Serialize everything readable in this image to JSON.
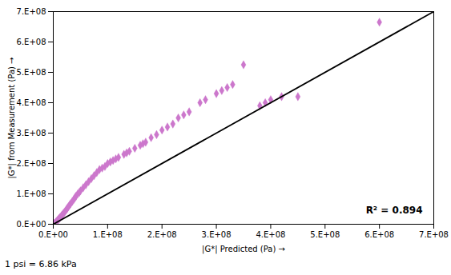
{
  "chart_data": {
    "type": "scatter",
    "xlabel": "|G*| Predicted (Pa)",
    "ylabel": "|G*| from Measurement (Pa)",
    "series": [
      {
        "type": "scatter",
        "color": "#CC77CC",
        "marker": "diamond",
        "x": [
          2000000.0,
          4000000.0,
          5000000.0,
          6000000.0,
          7000000.0,
          8000000.0,
          9000000.0,
          10000000.0,
          11000000.0,
          12000000.0,
          13000000.0,
          15000000.0,
          16000000.0,
          18000000.0,
          20000000.0,
          22000000.0,
          24000000.0,
          26000000.0,
          28000000.0,
          30000000.0,
          32000000.0,
          35000000.0,
          38000000.0,
          40000000.0,
          42000000.0,
          45000000.0,
          48000000.0,
          50000000.0,
          55000000.0,
          60000000.0,
          65000000.0,
          70000000.0,
          75000000.0,
          80000000.0,
          85000000.0,
          90000000.0,
          95000000.0,
          100000000.0,
          105000000.0,
          110000000.0,
          115000000.0,
          120000000.0,
          130000000.0,
          135000000.0,
          140000000.0,
          150000000.0,
          160000000.0,
          165000000.0,
          170000000.0,
          180000000.0,
          190000000.0,
          200000000.0,
          210000000.0,
          220000000.0,
          230000000.0,
          240000000.0,
          250000000.0,
          270000000.0,
          280000000.0,
          300000000.0,
          310000000.0,
          320000000.0,
          330000000.0,
          350000000.0,
          380000000.0,
          390000000.0,
          400000000.0,
          420000000.0,
          450000000.0,
          600000000.0
        ],
        "values": [
          3000000.0,
          5000000.0,
          7000000.0,
          9000000.0,
          11000000.0,
          13000000.0,
          15000000.0,
          17000000.0,
          19000000.0,
          21000000.0,
          23000000.0,
          27000000.0,
          30000000.0,
          34000000.0,
          38000000.0,
          43000000.0,
          48000000.0,
          53000000.0,
          58000000.0,
          63000000.0,
          68000000.0,
          75000000.0,
          82000000.0,
          88000000.0,
          93000000.0,
          100000000.0,
          105000000.0,
          110000000.0,
          120000000.0,
          130000000.0,
          140000000.0,
          150000000.0,
          160000000.0,
          170000000.0,
          180000000.0,
          185000000.0,
          190000000.0,
          200000000.0,
          205000000.0,
          210000000.0,
          215000000.0,
          220000000.0,
          230000000.0,
          235000000.0,
          240000000.0,
          250000000.0,
          260000000.0,
          265000000.0,
          270000000.0,
          285000000.0,
          295000000.0,
          310000000.0,
          320000000.0,
          330000000.0,
          350000000.0,
          360000000.0,
          370000000.0,
          400000000.0,
          410000000.0,
          430000000.0,
          440000000.0,
          450000000.0,
          460000000.0,
          525000000.0,
          390000000.0,
          400000000.0,
          410000000.0,
          420000000.0,
          420000000.0,
          665000000.0
        ]
      },
      {
        "type": "line",
        "color": "#000000",
        "line_style": "solid",
        "x": [
          0,
          700000000.0
        ],
        "values": [
          0,
          700000000.0
        ]
      }
    ],
    "xlim": [
      0,
      700000000.0
    ],
    "ylim": [
      0,
      700000000.0
    ],
    "xticks": [
      {
        "value": 0,
        "label": "0.E+00"
      },
      {
        "value": 100000000.0,
        "label": "1.E+08"
      },
      {
        "value": 200000000.0,
        "label": "2.E+08"
      },
      {
        "value": 300000000.0,
        "label": "3.E+08"
      },
      {
        "value": 400000000.0,
        "label": "4.E+08"
      },
      {
        "value": 500000000.0,
        "label": "5.E+08"
      },
      {
        "value": 600000000.0,
        "label": "6.E+08"
      },
      {
        "value": 700000000.0,
        "label": "7.E+08"
      }
    ],
    "yticks": [
      {
        "value": 0,
        "label": "0.E+00"
      },
      {
        "value": 100000000.0,
        "label": "1.E+08"
      },
      {
        "value": 200000000.0,
        "label": "2.E+08"
      },
      {
        "value": 300000000.0,
        "label": "3.E+08"
      },
      {
        "value": 400000000.0,
        "label": "4.E+08"
      },
      {
        "value": 500000000.0,
        "label": "5.E+08"
      },
      {
        "value": 600000000.0,
        "label": "6.E+08"
      },
      {
        "value": 700000000.0,
        "label": "7.E+08"
      }
    ],
    "annotations": [
      "R² = 0.894"
    ],
    "footnote": "1 psi = 6.86 kPa",
    "grid": false
  }
}
